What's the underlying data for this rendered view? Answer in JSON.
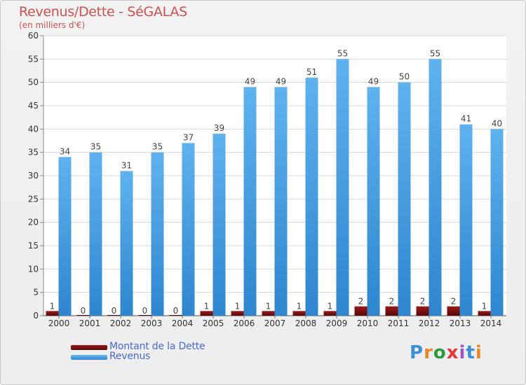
{
  "chart_data": {
    "type": "bar",
    "title": "Revenus/Dette - SéGALAS",
    "subtitle": "(en milliers d'€)",
    "categories": [
      "2000",
      "2001",
      "2002",
      "2003",
      "2004",
      "2005",
      "2006",
      "2007",
      "2008",
      "2009",
      "2010",
      "2011",
      "2012",
      "2013",
      "2014"
    ],
    "series": [
      {
        "name": "Montant de la Dette",
        "values": [
          1,
          0,
          0,
          0,
          0,
          1,
          1,
          1,
          1,
          1,
          2,
          2,
          2,
          2,
          1
        ],
        "color": "#7a0f0f"
      },
      {
        "name": "Revenus",
        "values": [
          34,
          35,
          31,
          35,
          37,
          39,
          49,
          49,
          51,
          55,
          49,
          50,
          55,
          41,
          40
        ],
        "color": "#4da6e8"
      }
    ],
    "yticks": [
      0,
      5,
      10,
      15,
      20,
      25,
      30,
      35,
      40,
      45,
      50,
      55,
      60
    ],
    "ylim": [
      0,
      60
    ],
    "grid": true,
    "legend_position": "bottom-left"
  },
  "logo": {
    "text": "Proxiti",
    "letters": [
      "P",
      "r",
      "o",
      "x",
      "i",
      "t",
      "i"
    ],
    "colors": [
      "#3a8fd6",
      "#e8862a",
      "#2a9a3a",
      "#e03a3a",
      "#9a5ac8",
      "#3a8fd6",
      "#e8862a"
    ]
  }
}
